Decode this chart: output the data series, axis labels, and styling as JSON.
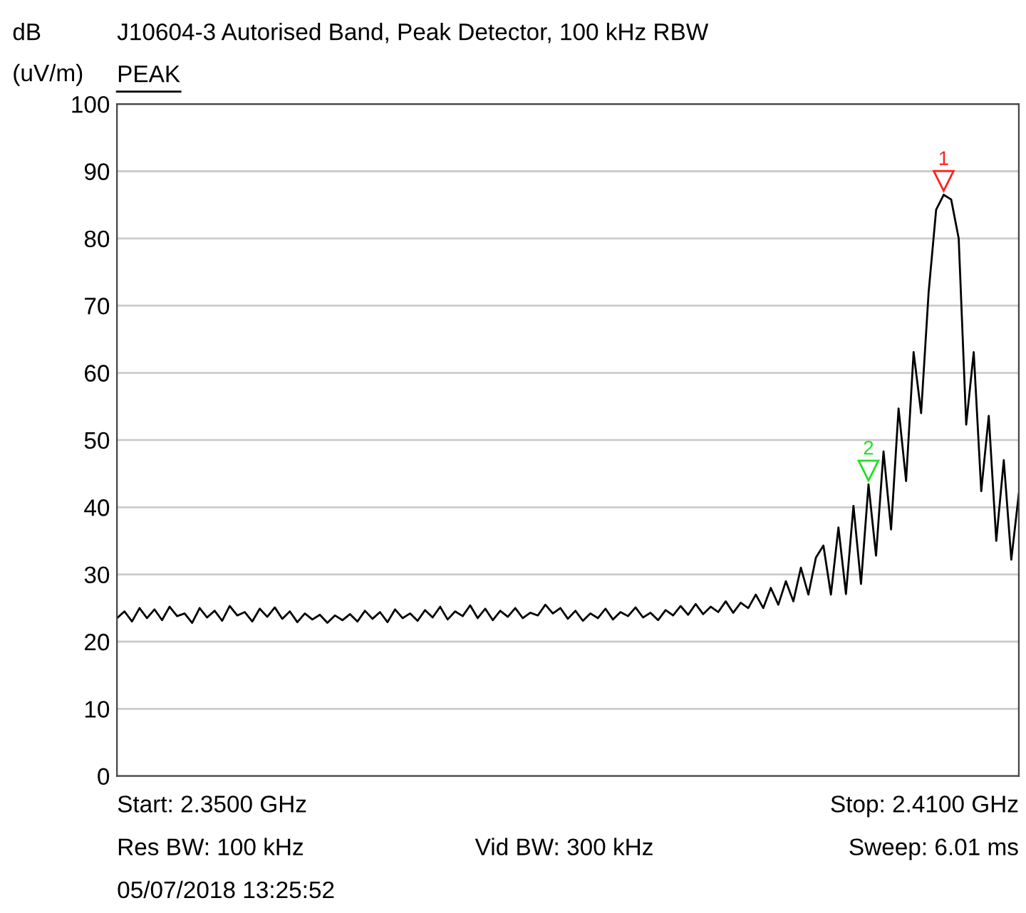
{
  "chart_data": {
    "type": "line",
    "title": "J10604-3 Autorised Band, Peak Detector, 100 kHz RBW",
    "ylabel": "dB\n(uV/m)",
    "categories": [
      null,
      null,
      null,
      null,
      null,
      null,
      null,
      null,
      null,
      null,
      null,
      null,
      null,
      null,
      null,
      null,
      null,
      null,
      null,
      null,
      null,
      null,
      null,
      null,
      null,
      null,
      null,
      null,
      null,
      null,
      null,
      null,
      null,
      null,
      null,
      null,
      null,
      null,
      null,
      null,
      null,
      null,
      null,
      null,
      null,
      null,
      null,
      null,
      null,
      null,
      null,
      null,
      null,
      null,
      null,
      null,
      null,
      null,
      null,
      null,
      null,
      null,
      null,
      null,
      null,
      null,
      null,
      null,
      null,
      null,
      null,
      null,
      null,
      null,
      null,
      null,
      null,
      null,
      null,
      null,
      null,
      null,
      null,
      null,
      null,
      null,
      null,
      null,
      null,
      null,
      null,
      null,
      null,
      null,
      null,
      null,
      null,
      null,
      null,
      null,
      null,
      null,
      null,
      null,
      null,
      null,
      null,
      null,
      null,
      null,
      null,
      null,
      null,
      null,
      null,
      null,
      null,
      null,
      null,
      null,
      null
    ],
    "series": [
      {
        "name": "PEAK",
        "color": "#000000",
        "values": [
          23.5,
          24.5,
          23,
          25,
          23.5,
          24.8,
          23.2,
          25.2,
          23.8,
          24.2,
          22.8,
          25,
          23.6,
          24.6,
          23.1,
          25.3,
          23.9,
          24.4,
          23,
          24.9,
          23.7,
          25.1,
          23.4,
          24.5,
          22.9,
          24.2,
          23.3,
          24,
          22.8,
          23.9,
          23.2,
          24.1,
          23,
          24.6,
          23.4,
          24.4,
          22.9,
          24.8,
          23.5,
          24.2,
          23.1,
          24.7,
          23.6,
          25.2,
          23.3,
          24.5,
          23.8,
          25.4,
          23.5,
          24.9,
          23.2,
          24.6,
          23.7,
          25,
          23.5,
          24.3,
          23.9,
          25.5,
          24.2,
          25,
          23.4,
          24.6,
          23.1,
          24.2,
          23.5,
          24.9,
          23.3,
          24.4,
          23.8,
          25.1,
          23.6,
          24.3,
          23.2,
          24.7,
          23.9,
          25.3,
          24,
          25.6,
          24.1,
          25.2,
          24.4,
          26,
          24.3,
          25.8,
          25,
          27,
          25,
          28,
          25.5,
          29,
          26,
          31,
          27,
          32.5,
          34.3,
          27,
          37,
          27.1,
          40.2,
          28.6,
          43.4,
          32.8,
          48.3,
          36.7,
          54.7,
          43.9,
          63.1,
          54,
          72,
          84.3,
          86.5,
          85.8,
          80,
          52.3,
          63.1,
          42.4,
          53.6,
          35,
          47,
          32.2,
          42
        ]
      }
    ],
    "ylim": [
      0,
      100
    ],
    "yticks": [
      0,
      10,
      20,
      30,
      40,
      50,
      60,
      70,
      80,
      90,
      100
    ],
    "grid": "y",
    "tick_labels": "y",
    "marker": "none",
    "line_style": "solid",
    "annotations": [
      {
        "text": "1",
        "y": 86.5
      },
      {
        "text": "2",
        "y": 43.4
      },
      "Start: 2.3500 GHz",
      "Stop: 2.4100 GHz",
      "Res BW: 100 kHz",
      "Vid BW: 300 kHz",
      "Sweep: 6.01 ms",
      "05/07/2018 13:25:52"
    ]
  }
}
